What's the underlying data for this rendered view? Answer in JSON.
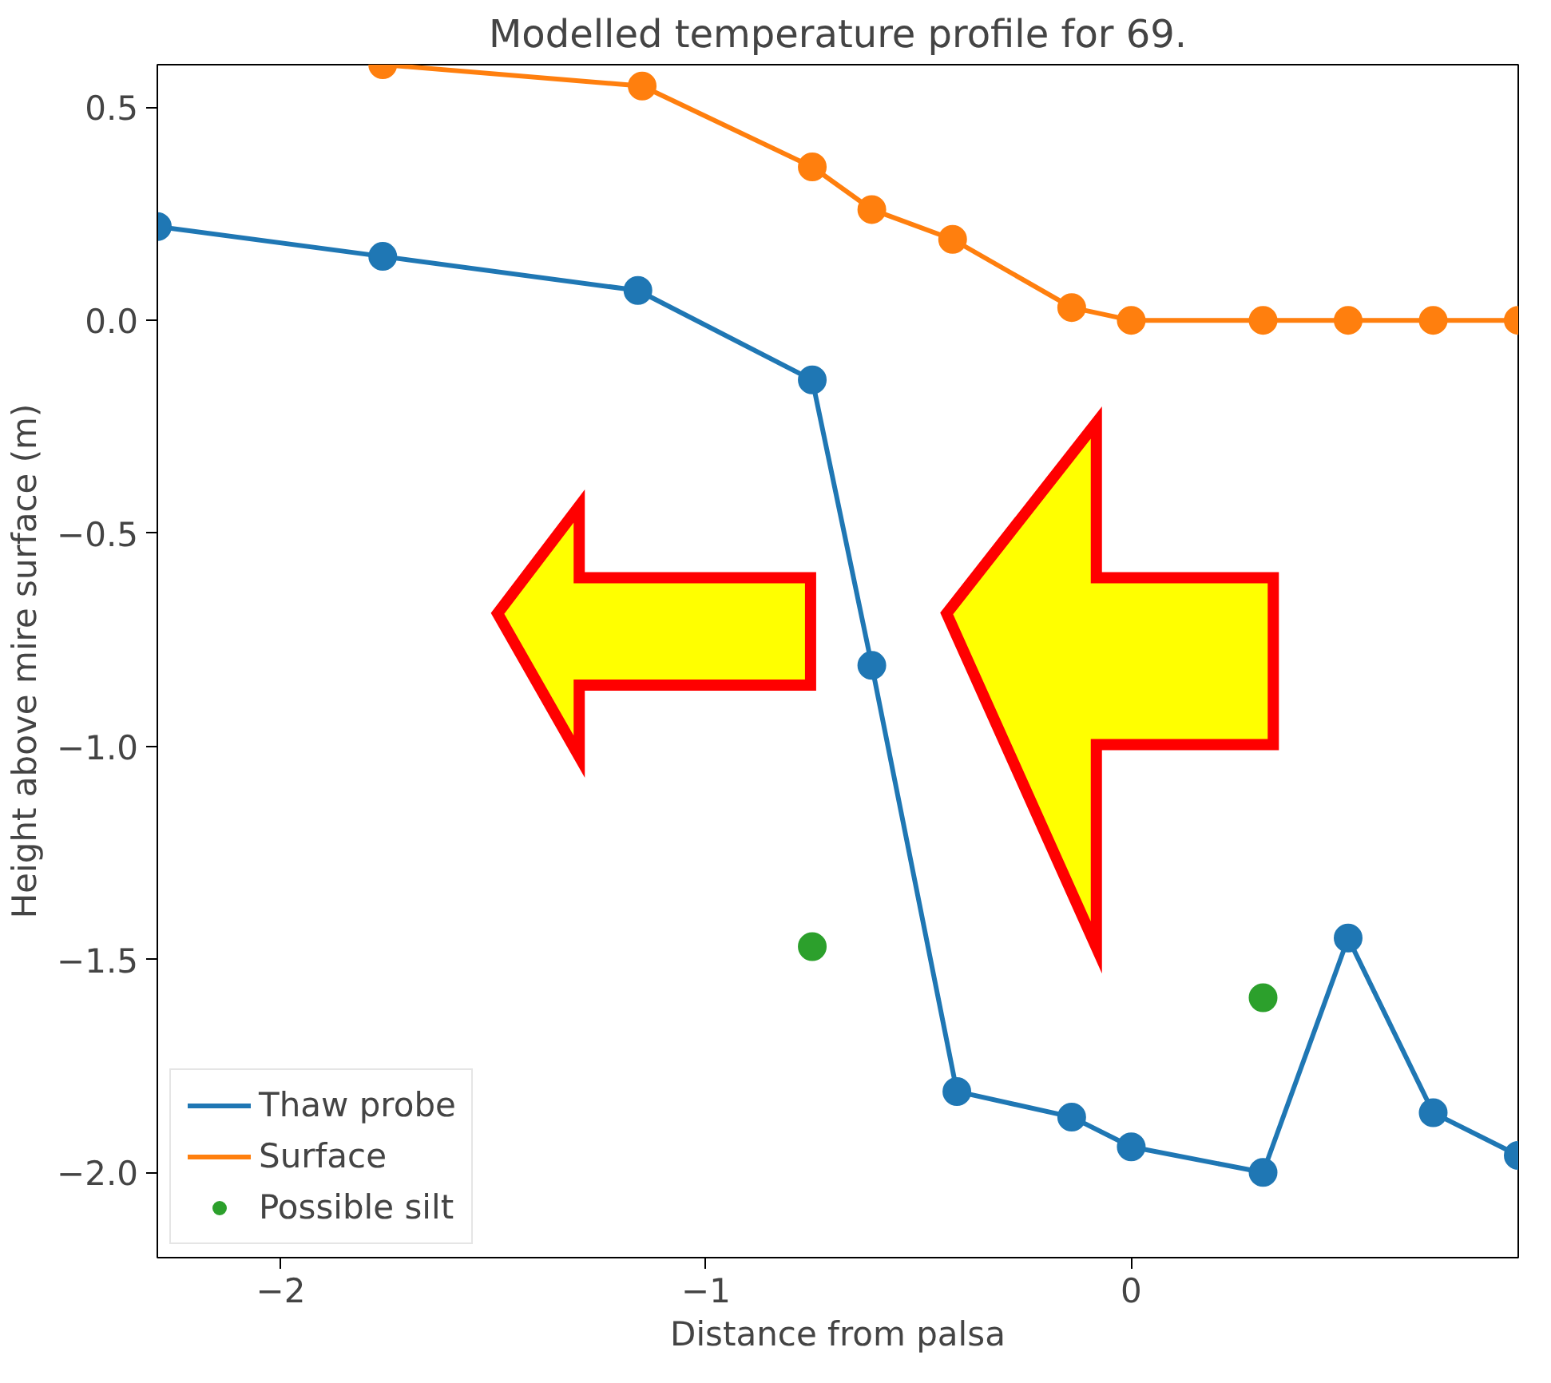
{
  "chart_data": {
    "type": "line",
    "title": "Modelled temperature profile for 69.",
    "xlabel": "Distance from palsa",
    "ylabel": "Height above mire surface (m)",
    "xlim": [
      -2.29,
      0.91
    ],
    "ylim": [
      -2.2,
      0.6
    ],
    "xticks": [
      {
        "value": -2,
        "label": "−2"
      },
      {
        "value": -1,
        "label": "−1"
      },
      0
    ],
    "yticks": [
      {
        "value": -2.0,
        "label": "−2.0"
      },
      {
        "value": -1.5,
        "label": "−1.5"
      },
      {
        "value": -1.0,
        "label": "−1.0"
      },
      {
        "value": -0.5,
        "label": "−0.5"
      },
      {
        "value": 0.0,
        "label": "0.0"
      },
      {
        "value": 0.5,
        "label": "0.5"
      }
    ],
    "grid": false,
    "legend": "bottom left",
    "marker": "circle",
    "series": [
      {
        "name": "Thaw probe",
        "color": "#1f77b4",
        "x": [
          -2.29,
          -1.76,
          -1.16,
          -0.75,
          -0.61,
          -0.41,
          -0.14,
          0.0,
          0.31,
          0.51,
          0.71,
          0.91
        ],
        "values": [
          0.22,
          0.15,
          0.07,
          -0.14,
          -0.81,
          -1.81,
          -1.87,
          -1.94,
          -2.0,
          -1.45,
          -1.86,
          -1.96
        ]
      },
      {
        "name": "Surface",
        "color": "#ff7f0e",
        "x": [
          -1.76,
          -1.15,
          -0.75,
          -0.61,
          -0.42,
          -0.14,
          0.0,
          0.31,
          0.51,
          0.71,
          0.91
        ],
        "values": [
          0.6,
          0.55,
          0.36,
          0.26,
          0.19,
          0.03,
          0.0,
          0.0,
          0.0,
          0.0,
          0.0
        ]
      },
      {
        "name": "Possible silt",
        "type": "scatter",
        "color": "#2ca02c",
        "x": [
          -0.75,
          0.31
        ],
        "values": [
          -1.47,
          -1.59
        ]
      }
    ]
  }
}
